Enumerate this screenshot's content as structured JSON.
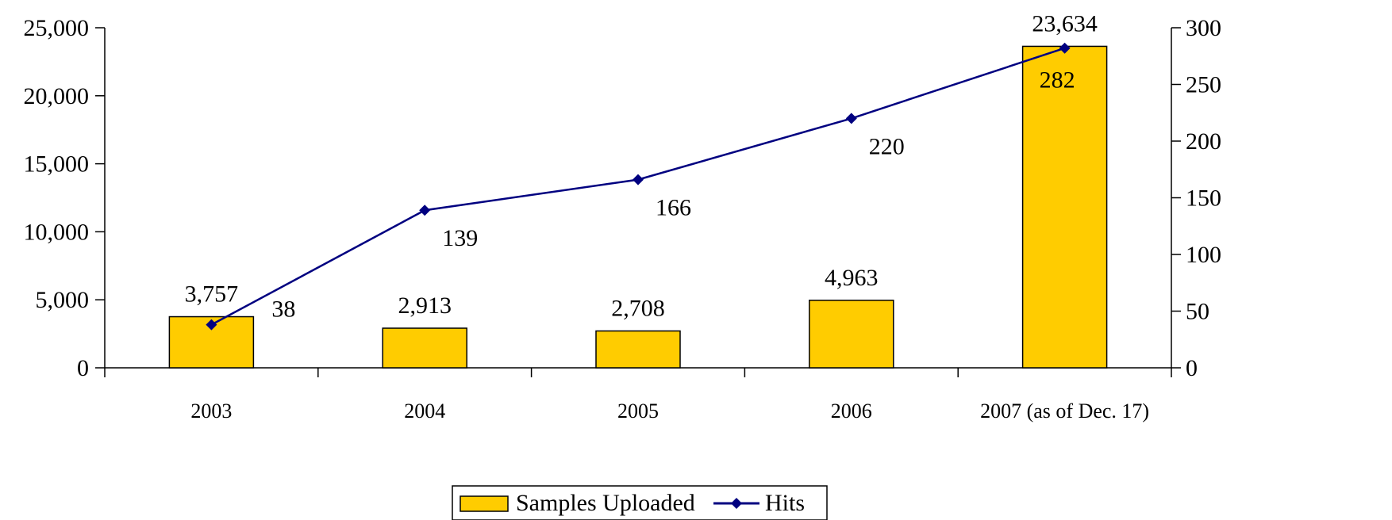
{
  "colors": {
    "bar_fill": "#FFCC00",
    "bar_stroke": "#000000",
    "line": "#000080",
    "axis": "#000000"
  },
  "chart_data": {
    "type": "bar",
    "categories": [
      "2003",
      "2004",
      "2005",
      "2006",
      "2007 (as of Dec. 17)"
    ],
    "series": [
      {
        "name": "Samples Uploaded",
        "type": "bar",
        "axis": "left",
        "values": [
          3757,
          2913,
          2708,
          4963,
          23634
        ],
        "labels": [
          "3,757",
          "2,913",
          "2,708",
          "4,963",
          "23,634"
        ]
      },
      {
        "name": "Hits",
        "type": "line",
        "axis": "right",
        "marker": "diamond",
        "values": [
          38,
          139,
          166,
          220,
          282
        ],
        "labels": [
          "38",
          "139",
          "166",
          "220",
          "282"
        ]
      }
    ],
    "y_left": {
      "ylim": [
        0,
        25000
      ],
      "ticks": [
        0,
        5000,
        10000,
        15000,
        20000,
        25000
      ],
      "tick_labels": [
        "0",
        "5,000",
        "10,000",
        "15,000",
        "20,000",
        "25,000"
      ]
    },
    "y_right": {
      "ylim": [
        0,
        300
      ],
      "ticks": [
        0,
        50,
        100,
        150,
        200,
        250,
        300
      ],
      "tick_labels": [
        "0",
        "50",
        "100",
        "150",
        "200",
        "250",
        "300"
      ]
    },
    "grid": false,
    "legend": {
      "position": "bottom",
      "entries": [
        "Samples Uploaded",
        "Hits"
      ]
    }
  }
}
